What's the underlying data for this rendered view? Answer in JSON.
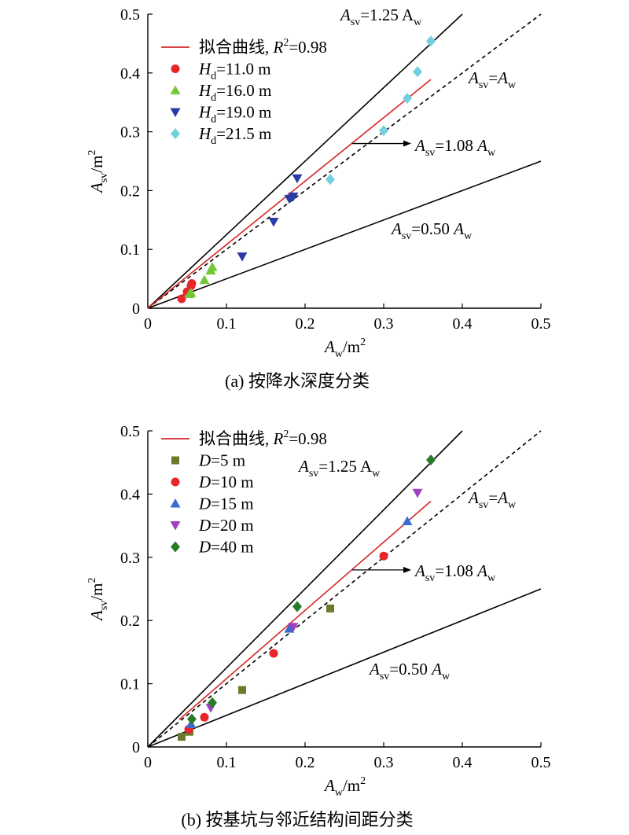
{
  "chart_data": [
    {
      "type": "scatter",
      "caption": "(a) 按降水深度分类",
      "xlabel_main": "A",
      "xlabel_sub": "w",
      "xlabel_unit": "/m",
      "xlabel_sup": "2",
      "ylabel_main": "A",
      "ylabel_sub": "sv",
      "ylabel_unit": "/m",
      "ylabel_sup": "2",
      "xlim": [
        0,
        0.5
      ],
      "ylim": [
        0,
        0.5
      ],
      "xticks": [
        "0",
        "0.1",
        "0.2",
        "0.3",
        "0.4",
        "0.5"
      ],
      "yticks": [
        "0",
        "0.1",
        "0.2",
        "0.3",
        "0.4",
        "0.5"
      ],
      "grid": false,
      "legend_position": "top-left",
      "fit": {
        "label": "拟合曲线, ",
        "r2_label": "R",
        "r2_sup": "2",
        "r2_value": "=0.98",
        "slope": 1.08,
        "x_range": [
          0,
          0.36
        ],
        "color": "#d62728"
      },
      "reference_lines": [
        {
          "slope": 1.25,
          "style": "solid",
          "x_range": [
            0,
            0.4
          ],
          "text_main": "A",
          "text_sub": "sv",
          "text_rest": "=1.25 A",
          "text_sub2": "w",
          "italic_tail": false
        },
        {
          "slope": 1.0,
          "style": "dashed",
          "x_range": [
            0,
            0.5
          ],
          "text_main": "A",
          "text_sub": "sv",
          "text_rest": "=A",
          "text_sub2": "w",
          "italic_tail": true
        },
        {
          "slope": 0.5,
          "style": "solid",
          "x_range": [
            0,
            0.5
          ],
          "text_main": "A",
          "text_sub": "sv",
          "text_rest": "=0.50 A",
          "text_sub2": "w",
          "italic_tail": true
        }
      ],
      "arrow_label": {
        "text_main": "A",
        "text_sub": "sv",
        "text_rest": "=1.08 A",
        "text_sub2": "w",
        "from": [
          0.26,
          0.28
        ],
        "to": [
          0.335,
          0.28
        ]
      },
      "series": [
        {
          "name_main": "H",
          "name_sub": "d",
          "name_rest": "=11.0 m",
          "marker": "circle",
          "color": "#e8262a",
          "points": [
            [
              0.043,
              0.016
            ],
            [
              0.05,
              0.028
            ],
            [
              0.055,
              0.038
            ],
            [
              0.056,
              0.042
            ]
          ]
        },
        {
          "name_main": "H",
          "name_sub": "d",
          "name_rest": "=16.0 m",
          "marker": "triangle-up",
          "color": "#74c838",
          "points": [
            [
              0.053,
              0.024
            ],
            [
              0.055,
              0.026
            ],
            [
              0.072,
              0.048
            ],
            [
              0.08,
              0.064
            ],
            [
              0.082,
              0.07
            ]
          ]
        },
        {
          "name_main": "H",
          "name_sub": "d",
          "name_rest": "=19.0 m",
          "marker": "triangle-down",
          "color": "#2a3aa8",
          "points": [
            [
              0.12,
              0.088
            ],
            [
              0.16,
              0.147
            ],
            [
              0.18,
              0.186
            ],
            [
              0.185,
              0.19
            ],
            [
              0.19,
              0.221
            ]
          ]
        },
        {
          "name_main": "H",
          "name_sub": "d",
          "name_rest": "=21.5 m",
          "marker": "diamond",
          "color": "#72d0e0",
          "points": [
            [
              0.232,
              0.219
            ],
            [
              0.3,
              0.302
            ],
            [
              0.33,
              0.357
            ],
            [
              0.343,
              0.402
            ],
            [
              0.36,
              0.454
            ]
          ]
        }
      ]
    },
    {
      "type": "scatter",
      "caption": "(b) 按基坑与邻近结构间距分类",
      "xlabel_main": "A",
      "xlabel_sub": "w",
      "xlabel_unit": "/m",
      "xlabel_sup": "2",
      "ylabel_main": "A",
      "ylabel_sub": "sv",
      "ylabel_unit": "/m",
      "ylabel_sup": "2",
      "xlim": [
        0,
        0.5
      ],
      "ylim": [
        0,
        0.5
      ],
      "xticks": [
        "0",
        "0.1",
        "0.2",
        "0.3",
        "0.4",
        "0.5"
      ],
      "yticks": [
        "0",
        "0.1",
        "0.2",
        "0.3",
        "0.4",
        "0.5"
      ],
      "grid": false,
      "legend_position": "top-left",
      "fit": {
        "label": "拟合曲线, ",
        "r2_label": "R",
        "r2_sup": "2",
        "r2_value": "=0.98",
        "slope": 1.08,
        "x_range": [
          0.04,
          0.36
        ],
        "color": "#d62728"
      },
      "reference_lines": [
        {
          "slope": 1.25,
          "style": "solid",
          "x_range": [
            0,
            0.4
          ],
          "text_main": "A",
          "text_sub": "sv",
          "text_rest": "=1.25 A",
          "text_sub2": "w",
          "italic_tail": false
        },
        {
          "slope": 1.0,
          "style": "dashed",
          "x_range": [
            0,
            0.5
          ],
          "text_main": "A",
          "text_sub": "sv",
          "text_rest": "=A",
          "text_sub2": "w",
          "italic_tail": true
        },
        {
          "slope": 0.5,
          "style": "solid",
          "x_range": [
            0,
            0.5
          ],
          "text_main": "A",
          "text_sub": "sv",
          "text_rest": "=0.50 A",
          "text_sub2": "w",
          "italic_tail": true
        }
      ],
      "arrow_label": {
        "text_main": "A",
        "text_sub": "sv",
        "text_rest": "=1.08 A",
        "text_sub2": "w",
        "from": [
          0.26,
          0.28
        ],
        "to": [
          0.335,
          0.28
        ]
      },
      "series": [
        {
          "name_main": "D",
          "name_sub": "",
          "name_rest": "=5 m",
          "marker": "square",
          "color": "#6b7a2a",
          "points": [
            [
              0.043,
              0.016
            ],
            [
              0.053,
              0.024
            ],
            [
              0.12,
              0.09
            ],
            [
              0.232,
              0.219
            ]
          ]
        },
        {
          "name_main": "D",
          "name_sub": "",
          "name_rest": "=10 m",
          "marker": "circle",
          "color": "#e8262a",
          "points": [
            [
              0.052,
              0.028
            ],
            [
              0.072,
              0.047
            ],
            [
              0.16,
              0.148
            ],
            [
              0.3,
              0.302
            ]
          ]
        },
        {
          "name_main": "D",
          "name_sub": "",
          "name_rest": "=15 m",
          "marker": "triangle-up",
          "color": "#3a6ad0",
          "points": [
            [
              0.055,
              0.036
            ],
            [
              0.18,
              0.187
            ],
            [
              0.33,
              0.357
            ]
          ]
        },
        {
          "name_main": "D",
          "name_sub": "",
          "name_rest": "=20 m",
          "marker": "triangle-down",
          "color": "#a040c0",
          "points": [
            [
              0.08,
              0.062
            ],
            [
              0.185,
              0.19
            ],
            [
              0.343,
              0.402
            ]
          ]
        },
        {
          "name_main": "D",
          "name_sub": "",
          "name_rest": "=40 m",
          "marker": "diamond",
          "color": "#2a7a2a",
          "points": [
            [
              0.056,
              0.044
            ],
            [
              0.082,
              0.07
            ],
            [
              0.19,
              0.222
            ],
            [
              0.36,
              0.454
            ]
          ]
        }
      ]
    }
  ]
}
